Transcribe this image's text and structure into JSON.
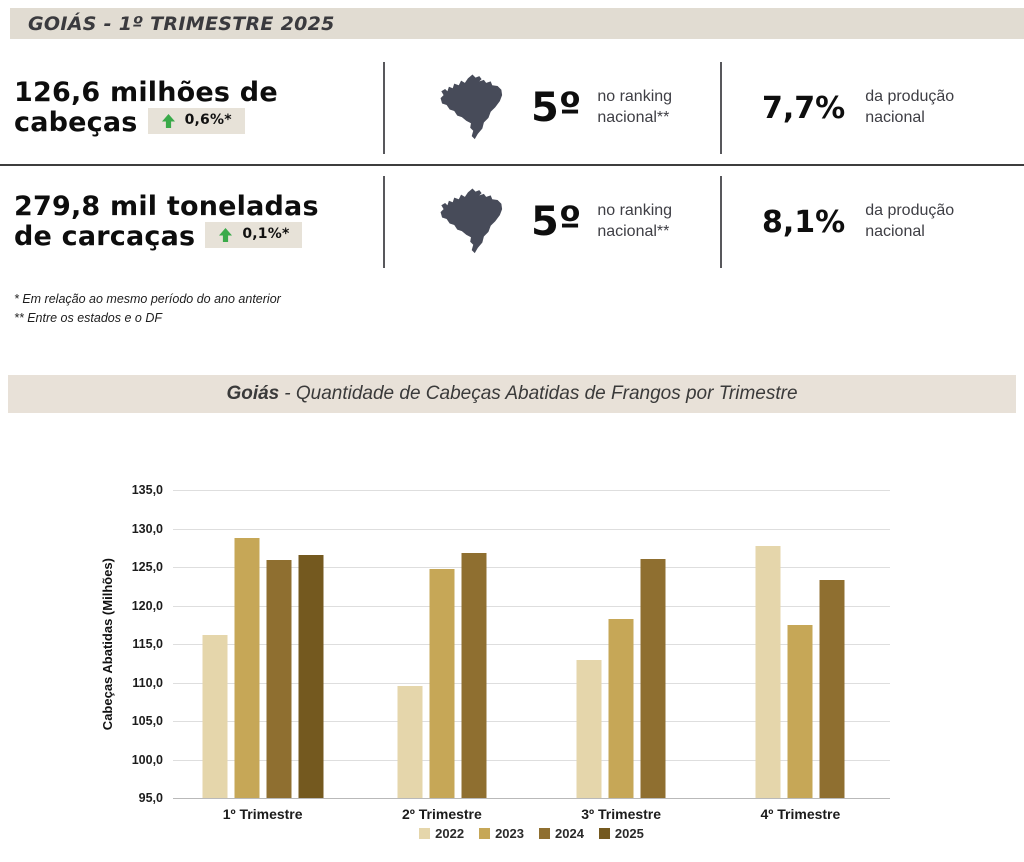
{
  "header": {
    "title": "GOIÁS - 1º TRIMESTRE 2025"
  },
  "colors": {
    "header_bg": "#e1dcd2",
    "banner_bg": "#e8e1d8",
    "badge_bg": "#e7e2d8",
    "accent_green": "#3aaa4a",
    "map_fill": "#474b59"
  },
  "stats": {
    "rows": [
      {
        "headline_line1": "126,6 milhões de",
        "headline_line2": "cabeças",
        "change_value": "0,6%*",
        "rank_value": "5º",
        "rank_line1": "no ranking",
        "rank_line2": "nacional**",
        "share_value": "7,7%",
        "share_line1": "da produção",
        "share_line2": "nacional"
      },
      {
        "headline_line1": "279,8 mil toneladas",
        "headline_line2": "de carcaças",
        "change_value": "0,1%*",
        "rank_value": "5º",
        "rank_line1": "no ranking",
        "rank_line2": "nacional**",
        "share_value": "8,1%",
        "share_line1": "da produção",
        "share_line2": "nacional"
      }
    ],
    "footnotes": [
      "* Em relação ao mesmo período do ano anterior",
      "** Entre os estados e o DF"
    ]
  },
  "chart_banner": {
    "state": "Goiás",
    "rest": "- Quantidade de Cabeças Abatidas de Frangos por Trimestre"
  },
  "chart_data": {
    "type": "bar",
    "title": "Goiás - Quantidade de Cabeças Abatidas de Frangos por Trimestre",
    "categories": [
      "1º Trimestre",
      "2º Trimestre",
      "3º Trimestre",
      "4º Trimestre"
    ],
    "series": [
      {
        "name": "2022",
        "color": "#e5d6ab",
        "values": [
          116.2,
          109.5,
          112.9,
          127.7
        ]
      },
      {
        "name": "2023",
        "color": "#c6a757",
        "values": [
          128.8,
          124.8,
          118.2,
          117.5
        ]
      },
      {
        "name": "2024",
        "color": "#8f6f30",
        "values": [
          125.9,
          126.8,
          126.1,
          123.3
        ]
      },
      {
        "name": "2025",
        "color": "#74591f",
        "values": [
          126.6,
          null,
          null,
          null
        ]
      }
    ],
    "xlabel": "",
    "ylabel": "Cabeças Abatidas (Milhões)",
    "ylim": [
      95,
      135
    ],
    "ytick_step": 5,
    "grid": true,
    "legend_position": "bottom"
  }
}
